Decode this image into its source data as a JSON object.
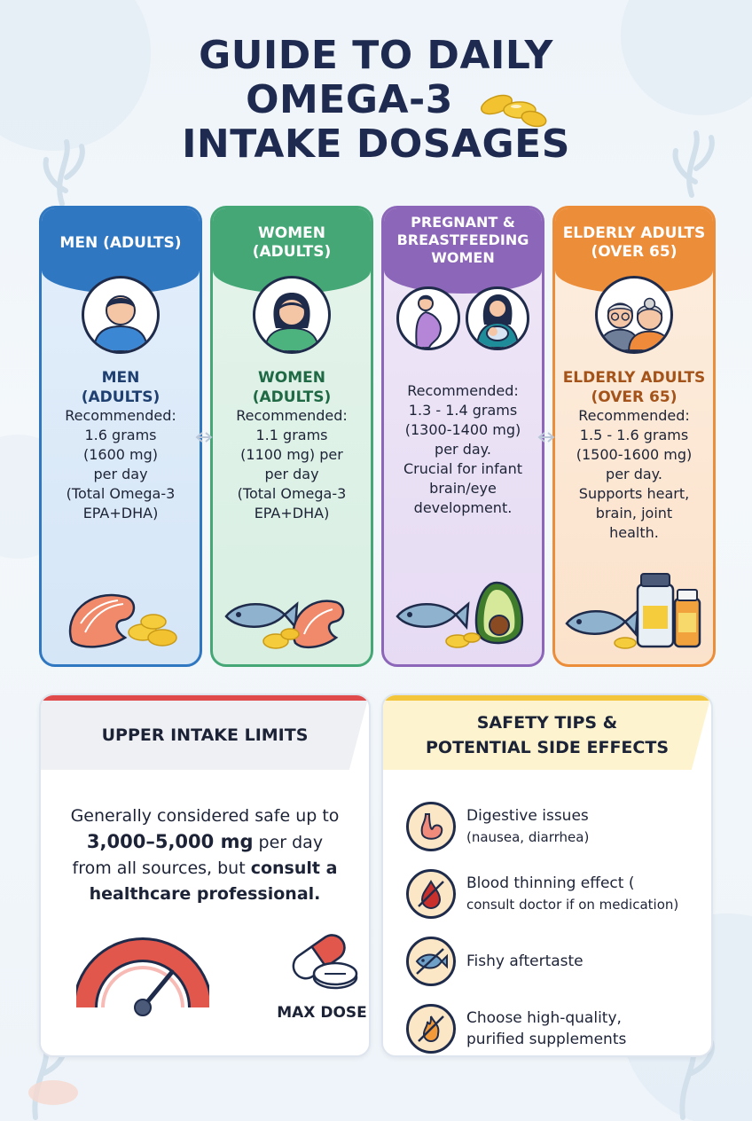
{
  "title": {
    "line1": "GUIDE TO DAILY",
    "line2": "OMEGA-3",
    "line3": "INTAKE DOSAGES"
  },
  "cards": [
    {
      "header": "MEN (ADULTS)",
      "subtitle_line1": "MEN",
      "subtitle_line2": "(ADULTS)",
      "lines": [
        "Recommended:",
        "1.6 grams",
        "(1600 mg)",
        "per day",
        "(Total Omega-3",
        "EPA+DHA)"
      ],
      "color": "#2f77c0"
    },
    {
      "header": "WOMEN (ADULTS)",
      "subtitle_line1": "WOMEN",
      "subtitle_line2": "(ADULTS)",
      "lines": [
        "Recommended:",
        "1.1 grams",
        "(1100 mg) per",
        "per day",
        "(Total Omega-3",
        "EPA+DHA)"
      ],
      "color": "#44a775"
    },
    {
      "header_line1": "PREGNANT &",
      "header_line2": "BREASTFEEDING",
      "header_line3": "WOMEN",
      "lines": [
        "Recommended:",
        "1.3 - 1.4 grams",
        "(1300-1400 mg)",
        "per day.",
        "Crucial for infant",
        "brain/eye",
        "development."
      ],
      "color": "#8c66b8"
    },
    {
      "header": "ELDERLY ADULTS (OVER 65)",
      "subtitle_line1": "ELDERLY ADULTS",
      "subtitle_line2": "(OVER 65)",
      "lines": [
        "Recommended:",
        "1.5 - 1.6 grams",
        "(1500-1600 mg)",
        "per day.",
        "Supports heart,",
        "brain, joint",
        "health."
      ],
      "color": "#ec8d3a"
    }
  ],
  "upper_limits": {
    "heading": "UPPER INTAKE LIMITS",
    "text_part1": "Generally considered safe up to",
    "text_bold1": "3,000–5,000 mg",
    "text_part2": " per day",
    "text_part3": "from all sources, but ",
    "text_bold2": "consult a",
    "text_bold3": "healthcare professional.",
    "max_dose_label": "MAX DOSE",
    "accent": "#e04a4a"
  },
  "safety": {
    "heading_line1": "SAFETY TIPS &",
    "heading_line2": "POTENTIAL SIDE EFFECTS",
    "accent": "#f2c53a",
    "tips": [
      {
        "title": "Digestive issues",
        "sub": "(nausea, diarrhea)",
        "icon": "stomach-icon"
      },
      {
        "title": "Blood thinning effect (",
        "sub": "consult doctor if on medication)",
        "icon": "blood-drop-icon"
      },
      {
        "title": "Fishy aftertaste",
        "sub": "",
        "icon": "fish-icon"
      },
      {
        "title": "Choose high-quality,",
        "sub": "purified supplements",
        "icon": "no-flame-icon"
      }
    ]
  }
}
